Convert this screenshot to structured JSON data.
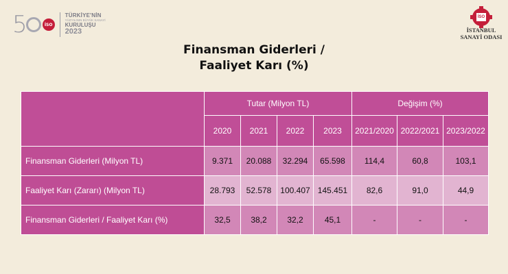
{
  "header": {
    "anniversary_logo": {
      "number_prefix": "5",
      "line1": "TÜRKİYE'NİN",
      "line2": "YÜZYILININ BÜYÜK SANAYİ",
      "line3": "KURULUŞU",
      "year": "2023",
      "emblem": "gear-emblem",
      "emblem_text": "İSO"
    },
    "org_logo": {
      "emblem": "gear-emblem",
      "emblem_text": "İSO",
      "name_line1": "İSTANBUL",
      "name_line2": "SANAYİ ODASI"
    }
  },
  "title": {
    "line1": "Finansman Giderleri /",
    "line2": "Faaliyet Karı (%)"
  },
  "table": {
    "group_headers": {
      "amount": "Tutar (Milyon TL)",
      "change": "Değişim (%)"
    },
    "years": [
      "2020",
      "2021",
      "2022",
      "2023"
    ],
    "change_periods": [
      "2021/2020",
      "2022/2021",
      "2023/2022"
    ],
    "rows": [
      {
        "label": "Finansman Giderleri (Milyon TL)",
        "values": [
          "9.371",
          "20.088",
          "32.294",
          "65.598"
        ],
        "changes": [
          "114,4",
          "60,8",
          "103,1"
        ]
      },
      {
        "label": "Faaliyet Karı (Zararı) (Milyon TL)",
        "values": [
          "28.793",
          "52.578",
          "100.407",
          "145.451"
        ],
        "changes": [
          "82,6",
          "91,0",
          "44,9"
        ]
      },
      {
        "label": "Finansman Giderleri / Faaliyet Karı (%)",
        "values": [
          "32,5",
          "38,2",
          "32,2",
          "45,1"
        ],
        "changes": [
          "-",
          "-",
          "-"
        ]
      }
    ]
  },
  "colors": {
    "background": "#f3ecdc",
    "header_magenta": "#c04e97",
    "cell_pink": "#d287b7",
    "cell_light_pink": "#e2b4d1",
    "brand_red": "#c41e3a"
  }
}
